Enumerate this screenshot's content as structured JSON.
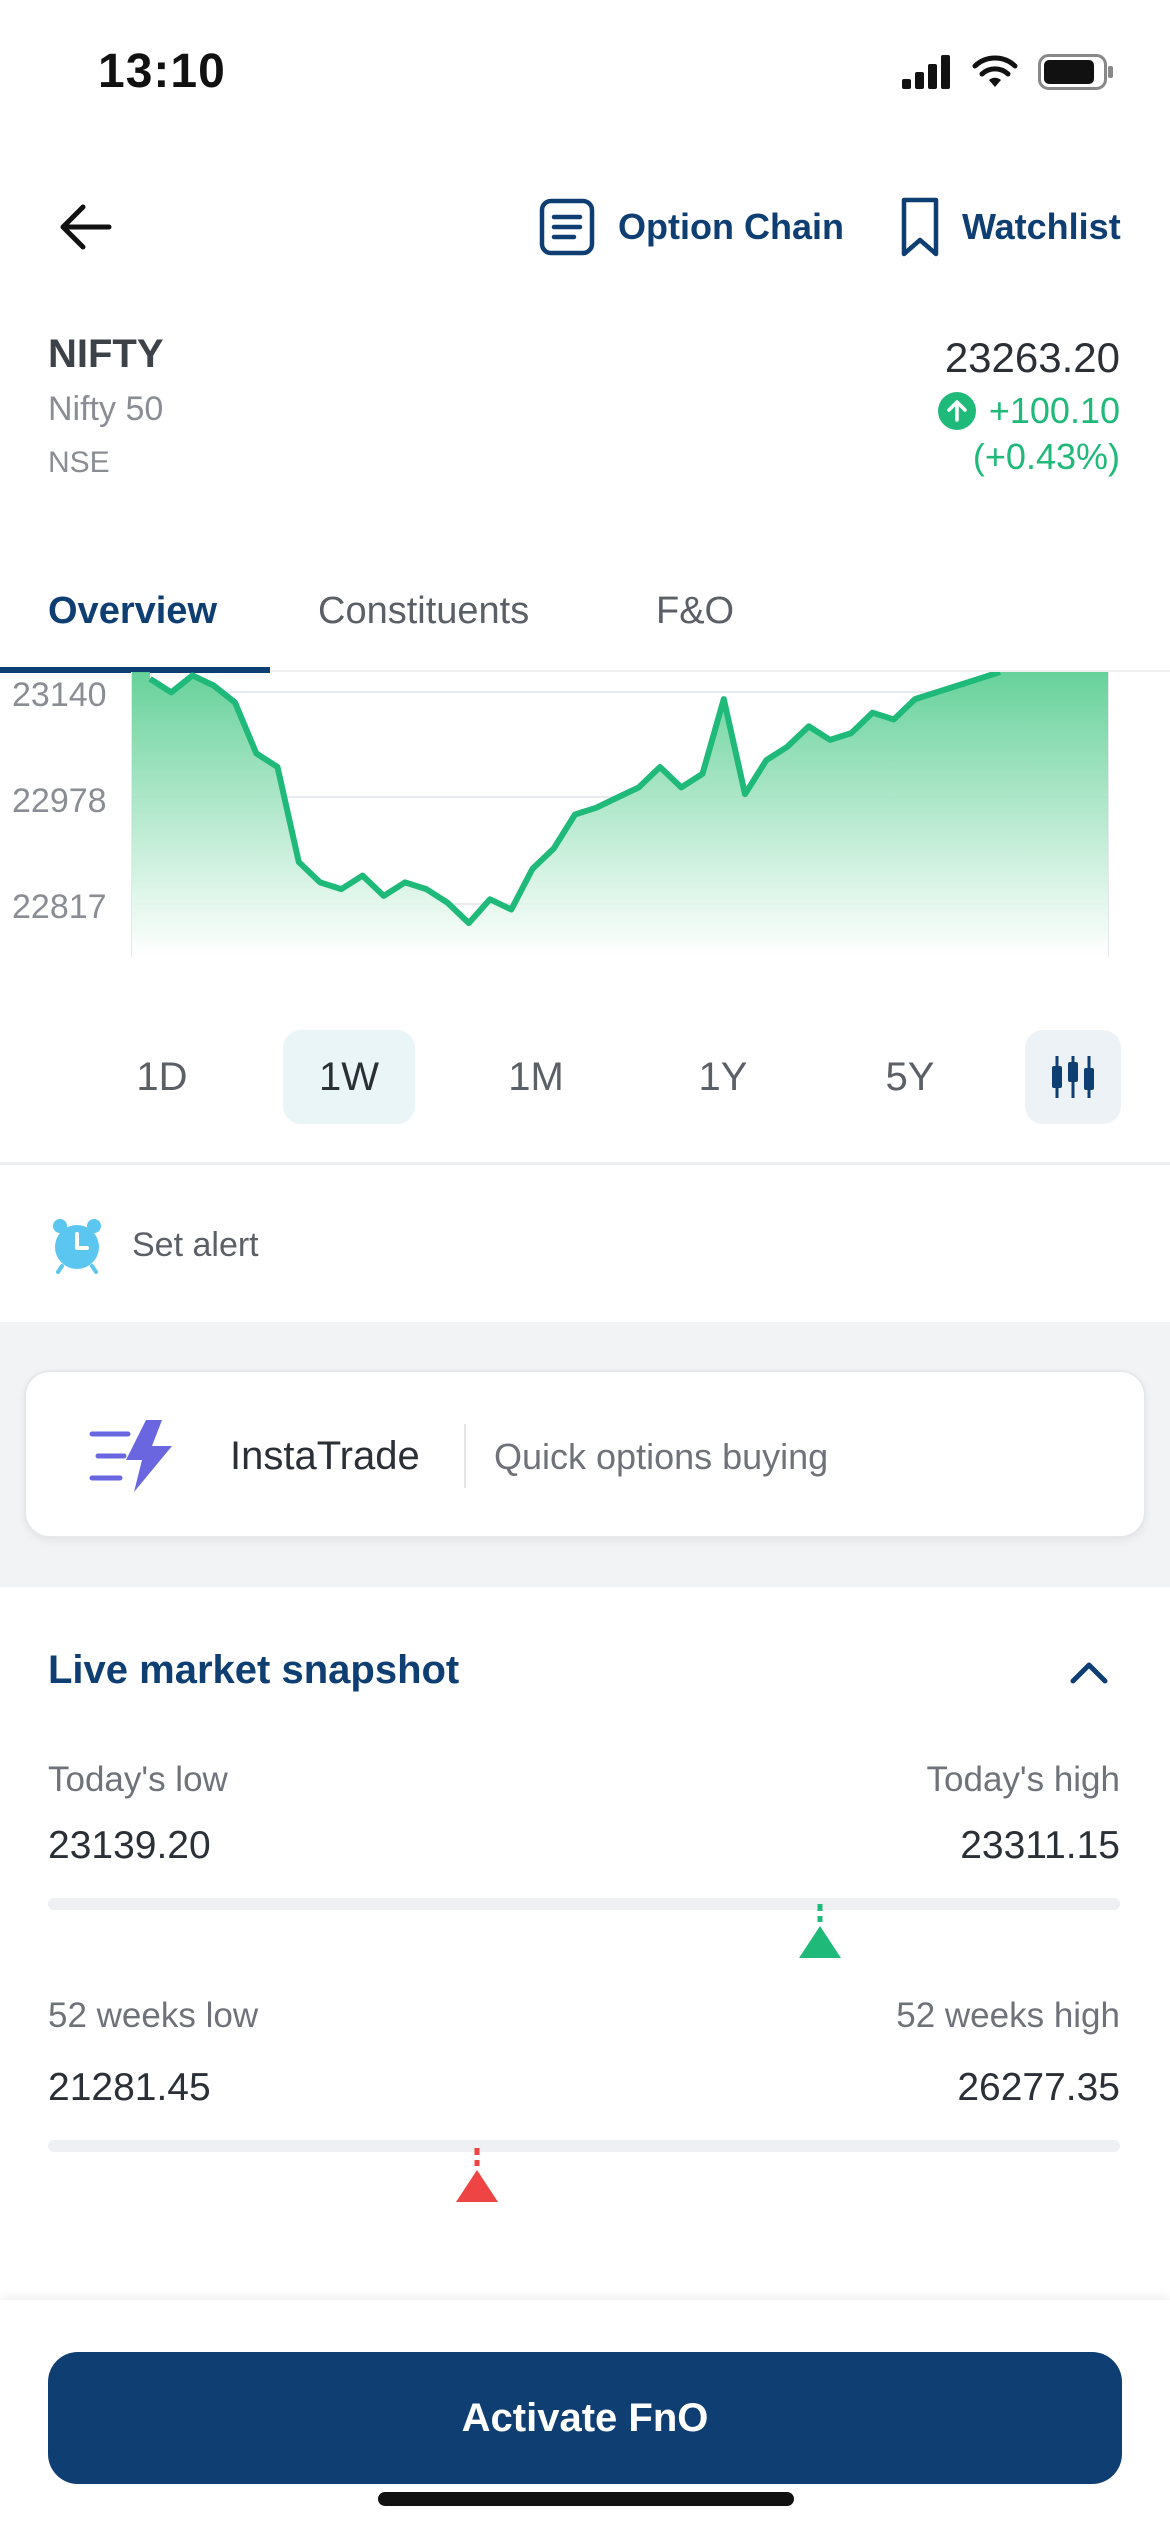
{
  "status_bar": {
    "time": "13:10"
  },
  "header": {
    "option_chain_label": "Option Chain",
    "watchlist_label": "Watchlist"
  },
  "instrument": {
    "symbol": "NIFTY",
    "name": "Nifty 50",
    "exchange": "NSE",
    "price": "23263.20",
    "change": "+100.10",
    "change_pct": "(+0.43%)"
  },
  "tabs": [
    {
      "label": "Overview",
      "active": true
    },
    {
      "label": "Constituents",
      "active": false
    },
    {
      "label": "F&O",
      "active": false
    }
  ],
  "chart_data": {
    "type": "area",
    "y_ticks": [
      "23140",
      "22978",
      "22817"
    ],
    "line_color": "#1fb97a",
    "points": [
      23170,
      23150,
      23175,
      23160,
      23135,
      23060,
      23040,
      22900,
      22870,
      22860,
      22880,
      22850,
      22870,
      22860,
      22840,
      22810,
      22845,
      22830,
      22890,
      22920,
      22970,
      22980,
      22995,
      23010,
      23040,
      23010,
      23030,
      23140,
      23000,
      23050,
      23070,
      23100,
      23080,
      23090,
      23120,
      23110,
      23140,
      23150,
      23160,
      23170,
      23180
    ],
    "ylim": [
      22760,
      23180
    ]
  },
  "ranges": [
    {
      "label": "1D",
      "active": false
    },
    {
      "label": "1W",
      "active": true
    },
    {
      "label": "1M",
      "active": false
    },
    {
      "label": "1Y",
      "active": false
    },
    {
      "label": "5Y",
      "active": false
    }
  ],
  "alert": {
    "label": "Set alert"
  },
  "insta_trade": {
    "title": "InstaTrade",
    "subtitle": "Quick options buying"
  },
  "snapshot": {
    "title": "Live market snapshot",
    "today": {
      "low_label": "Today's low",
      "high_label": "Today's high",
      "low": "23139.20",
      "high": "23311.15",
      "position": 0.72,
      "color": "#1fb97a"
    },
    "weeks52": {
      "low_label": "52 weeks low",
      "high_label": "52 weeks high",
      "low": "21281.45",
      "high": "26277.35",
      "position": 0.4,
      "color": "#ef4444"
    }
  },
  "bottom": {
    "activate_label": "Activate FnO"
  },
  "colors": {
    "primary": "#0f3e73",
    "positive": "#1fb97a",
    "negative": "#ef4444"
  }
}
